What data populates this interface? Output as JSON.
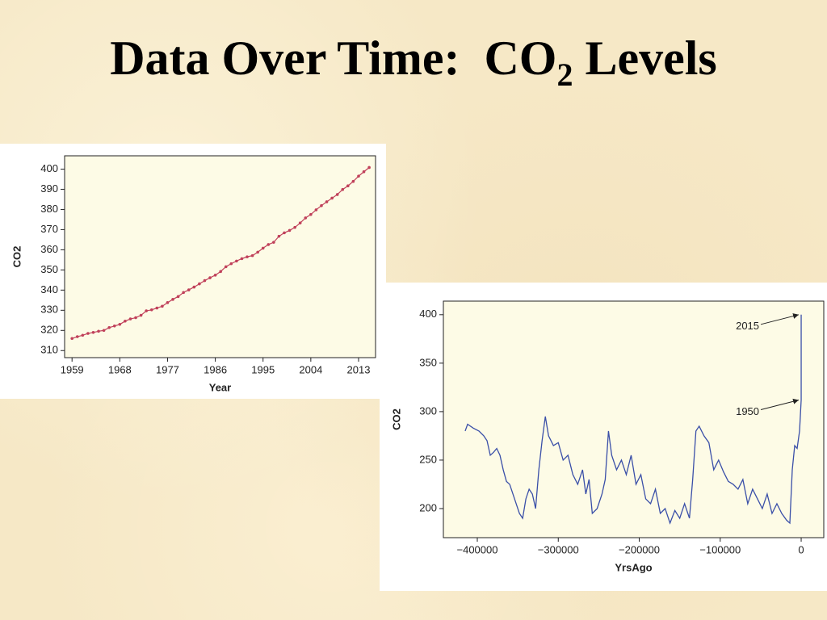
{
  "slide_title": {
    "main": "Data Over Time:  CO",
    "subscript": "2",
    "end": " Levels"
  },
  "chart_data": [
    {
      "type": "line",
      "markers": true,
      "color": "#c0405a",
      "plot_bg": "#fdfbe6",
      "xlabel": "Year",
      "ylabel": "CO2",
      "x": [
        1959,
        1960,
        1961,
        1962,
        1963,
        1964,
        1965,
        1966,
        1967,
        1968,
        1969,
        1970,
        1971,
        1972,
        1973,
        1974,
        1975,
        1976,
        1977,
        1978,
        1979,
        1980,
        1981,
        1982,
        1983,
        1984,
        1985,
        1986,
        1987,
        1988,
        1989,
        1990,
        1991,
        1992,
        1993,
        1994,
        1995,
        1996,
        1997,
        1998,
        1999,
        2000,
        2001,
        2002,
        2003,
        2004,
        2005,
        2006,
        2007,
        2008,
        2009,
        2010,
        2011,
        2012,
        2013,
        2014,
        2015
      ],
      "values": [
        316.0,
        316.9,
        317.6,
        318.5,
        319.0,
        319.6,
        320.0,
        321.4,
        322.2,
        323.0,
        324.6,
        325.7,
        326.3,
        327.5,
        329.7,
        330.2,
        331.1,
        332.0,
        333.8,
        335.4,
        336.8,
        338.8,
        340.1,
        341.5,
        343.1,
        344.7,
        346.1,
        347.4,
        349.2,
        351.6,
        353.1,
        354.4,
        355.6,
        356.5,
        357.1,
        358.8,
        360.8,
        362.6,
        363.7,
        366.7,
        368.4,
        369.6,
        371.1,
        373.3,
        375.8,
        377.5,
        379.8,
        381.9,
        383.8,
        385.6,
        387.4,
        389.9,
        391.7,
        393.9,
        396.5,
        398.7,
        400.8
      ],
      "xlim": [
        1957.6,
        2016.2
      ],
      "ylim": [
        306.5,
        406.6
      ],
      "xticks": [
        1959,
        1968,
        1977,
        1986,
        1995,
        2004,
        2013
      ],
      "yticks": [
        310,
        320,
        330,
        340,
        350,
        360,
        370,
        380,
        390,
        400
      ]
    },
    {
      "type": "line",
      "markers": false,
      "color": "#3a4fa8",
      "plot_bg": "#fdfbe6",
      "xlabel": "YrsAgo",
      "ylabel": "CO2",
      "x": [
        -415000,
        -412000,
        -405000,
        -398000,
        -392000,
        -388000,
        -384000,
        -380000,
        -376000,
        -372000,
        -368000,
        -364000,
        -360000,
        -356000,
        -352000,
        -348000,
        -344000,
        -340000,
        -336000,
        -332000,
        -328000,
        -324000,
        -320000,
        -316000,
        -312000,
        -306000,
        -300000,
        -294000,
        -288000,
        -282000,
        -276000,
        -270000,
        -266000,
        -262000,
        -258000,
        -252000,
        -246000,
        -242000,
        -238000,
        -234000,
        -228000,
        -222000,
        -216000,
        -210000,
        -204000,
        -198000,
        -192000,
        -186000,
        -180000,
        -174000,
        -168000,
        -162000,
        -156000,
        -150000,
        -144000,
        -138000,
        -134000,
        -130000,
        -126000,
        -120000,
        -114000,
        -108000,
        -102000,
        -96000,
        -90000,
        -84000,
        -78000,
        -72000,
        -66000,
        -60000,
        -54000,
        -48000,
        -42000,
        -36000,
        -30000,
        -24000,
        -18000,
        -14000,
        -11000,
        -8000,
        -5000,
        -2000,
        0,
        0
      ],
      "values": [
        280,
        287,
        283,
        280,
        275,
        270,
        255,
        258,
        262,
        255,
        240,
        228,
        225,
        215,
        205,
        195,
        190,
        210,
        220,
        215,
        200,
        240,
        270,
        295,
        275,
        265,
        268,
        250,
        255,
        235,
        225,
        240,
        215,
        230,
        195,
        200,
        215,
        230,
        280,
        255,
        240,
        250,
        235,
        255,
        225,
        235,
        210,
        205,
        220,
        195,
        200,
        185,
        198,
        190,
        205,
        190,
        230,
        280,
        285,
        275,
        268,
        240,
        250,
        238,
        228,
        225,
        220,
        230,
        205,
        220,
        210,
        200,
        215,
        195,
        205,
        195,
        188,
        185,
        240,
        265,
        262,
        280,
        312,
        400
      ],
      "xlim": [
        -441900,
        27900
      ],
      "ylim": [
        170,
        414
      ],
      "xticks": [
        {
          "value": -400000,
          "label": "−400000"
        },
        {
          "value": -300000,
          "label": "−300000"
        },
        {
          "value": -200000,
          "label": "−200000"
        },
        {
          "value": -100000,
          "label": "−100000"
        },
        0
      ],
      "yticks": [
        200,
        250,
        300,
        350,
        400
      ],
      "annotations": [
        {
          "text": "2015",
          "x": 0,
          "y": 400
        },
        {
          "text": "1950",
          "x": 0,
          "y": 312
        }
      ]
    }
  ]
}
